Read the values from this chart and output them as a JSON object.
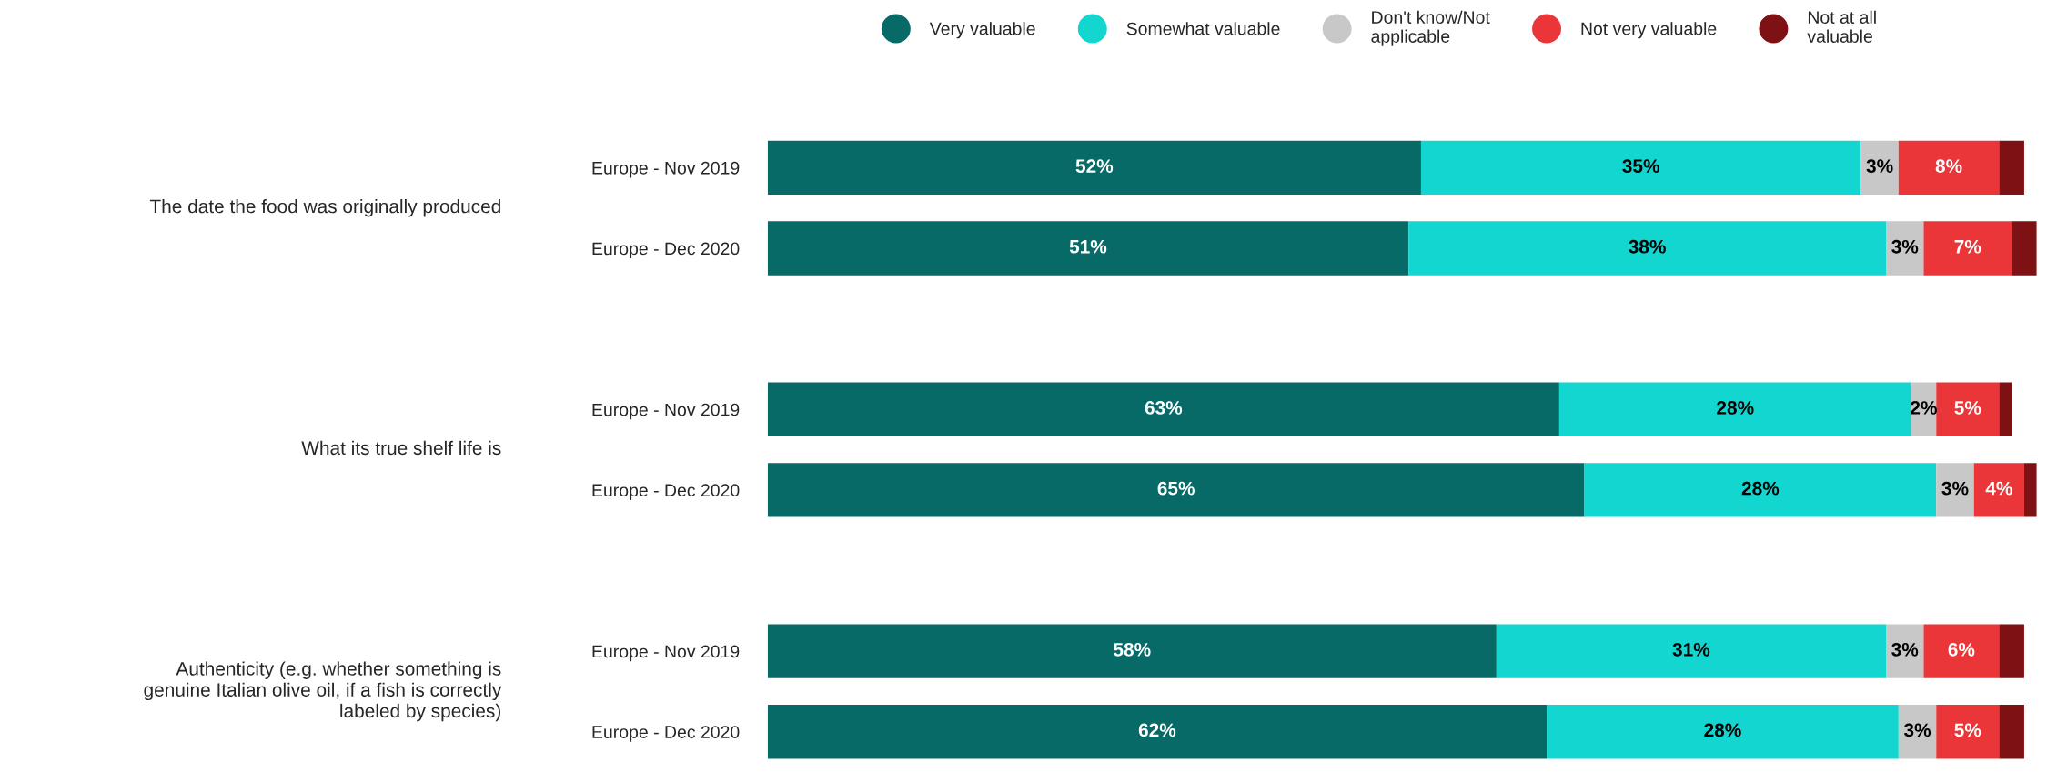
{
  "chart_data": {
    "type": "bar",
    "orientation": "horizontal",
    "stacked": true,
    "categories": [
      "Europe - Nov 2019",
      "Europe - Dec 2020",
      null,
      "Europe - Nov 2019",
      "Europe - Dec 2020",
      null,
      "Europe - Nov 2019",
      "Europe - Dec 2020"
    ],
    "annotations": [
      "The date the food was originally produced",
      "What its true shelf life is",
      "Authenticity (e.g. whether something is\ngenuine Italian olive oil, if a fish is correctly\nlabeled by species)"
    ],
    "series": [
      {
        "name": "Very valuable",
        "color": "#086a66",
        "values": [
          52,
          51,
          null,
          63,
          65,
          null,
          58,
          62
        ],
        "value_labels": [
          "52%",
          "51%",
          null,
          "63%",
          "65%",
          null,
          "58%",
          "62%"
        ]
      },
      {
        "name": "Somewhat valuable",
        "color": "#12d6cf",
        "values": [
          35,
          38,
          null,
          28,
          28,
          null,
          31,
          28
        ],
        "value_labels": [
          "35%",
          "38%",
          null,
          "28%",
          "28%",
          null,
          "31%",
          "28%"
        ]
      },
      {
        "name": "Don't know/Not\napplicable",
        "color": "#c8c8c8",
        "values": [
          3,
          3,
          null,
          2,
          3,
          null,
          3,
          3
        ],
        "value_labels": [
          "3%",
          "3%",
          null,
          "2%",
          "3%",
          null,
          "3%",
          "3%"
        ]
      },
      {
        "name": "Not very valuable",
        "color": "#ea3539",
        "values": [
          8,
          7,
          null,
          5,
          4,
          null,
          6,
          5
        ],
        "value_labels": [
          "8%",
          "7%",
          null,
          "5%",
          "4%",
          null,
          "6%",
          "5%"
        ]
      },
      {
        "name": "Not at all\nvaluable",
        "color": "#7d1114",
        "values": [
          2,
          2,
          null,
          1,
          1,
          null,
          2,
          2
        ]
      }
    ],
    "legend": "top",
    "grid": false
  }
}
